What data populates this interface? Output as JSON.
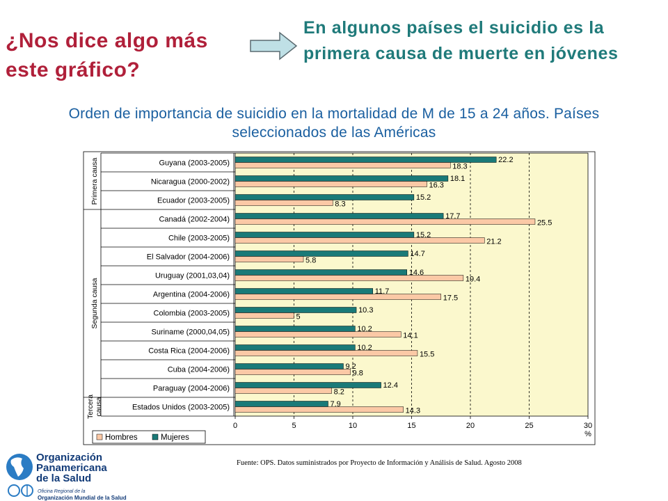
{
  "slide": {
    "title": "¿Nos dice algo más este gráfico?",
    "subtitle": "En algunos países el suicidio es la primera causa de muerte en jóvenes",
    "chart_heading": "Orden de importancia de suicidio en la mortalidad de M de 15 a 24 años. Países seleccionados de las Américas",
    "source": "Fuente: OPS. Datos suministrados por Proyecto de Información y Análisis de Salud. Agosto 2008",
    "org_name": [
      "Organización",
      "Panamericana",
      "de la Salud"
    ],
    "org_sub1": "Oficina Regional de la",
    "org_sub2": "Organización Mundial de la Salud"
  },
  "colors": {
    "title": "#b0203a",
    "subtitle": "#1f7a7a",
    "heading": "#1a5fa0",
    "mujeres": "#1a7a78",
    "hombres": "#fbc9a6",
    "plot_bg": "#fbf8cd",
    "org": "#123b78"
  },
  "chart_data": {
    "type": "bar",
    "orientation": "horizontal",
    "categories": [
      "Guyana (2003-2005)",
      "Nicaragua (2000-2002)",
      "Ecuador (2003-2005)",
      "Canadá (2002-2004)",
      "Chile (2003-2005)",
      "El Salvador (2004-2006)",
      "Uruguay (2001,03,04)",
      "Argentina (2004-2006)",
      "Colombia (2003-2005)",
      "Suriname (2000,04,05)",
      "Costa Rica (2004-2006)",
      "Cuba (2004-2006)",
      "Paraguay (2004-2006)",
      "Estados Unidos (2003-2005)"
    ],
    "series": [
      {
        "name": "Mujeres",
        "values": [
          22.2,
          18.1,
          15.2,
          17.7,
          15.2,
          14.7,
          14.6,
          11.7,
          10.3,
          10.2,
          10.2,
          9.2,
          12.4,
          7.9
        ]
      },
      {
        "name": "Hombres",
        "values": [
          18.3,
          16.3,
          8.3,
          25.5,
          21.2,
          5.8,
          19.4,
          17.5,
          5,
          14.1,
          15.5,
          9.8,
          8.2,
          14.3
        ]
      }
    ],
    "value_labels": {
      "Mujeres": [
        "22.2",
        "18.1",
        "15.2",
        "17.7",
        "15.2",
        "14.7",
        "14.6",
        "11.7",
        "10.3",
        "10.2",
        "10.2",
        "9.2",
        "12.4",
        "7.9"
      ],
      "Hombres": [
        "18.3",
        "16.3",
        "8.3",
        "25.5",
        "21.2",
        "5.8",
        "19.4",
        "17.5",
        "5",
        "14.1",
        "15.5",
        "9.8",
        "8.2",
        "14.3"
      ]
    },
    "groups": [
      {
        "label": "Primera causa",
        "count": 3
      },
      {
        "label": "Segunda causa",
        "count": 10
      },
      {
        "label": "Tercera causa",
        "count": 1
      }
    ],
    "xlim": [
      0,
      30
    ],
    "xticks": [
      0,
      5,
      10,
      15,
      20,
      25,
      30
    ],
    "xlabel": "%",
    "grid": "dashed vertical",
    "legend": {
      "position": "bottom-left",
      "entries": [
        "Hombres",
        "Mujeres"
      ]
    }
  }
}
